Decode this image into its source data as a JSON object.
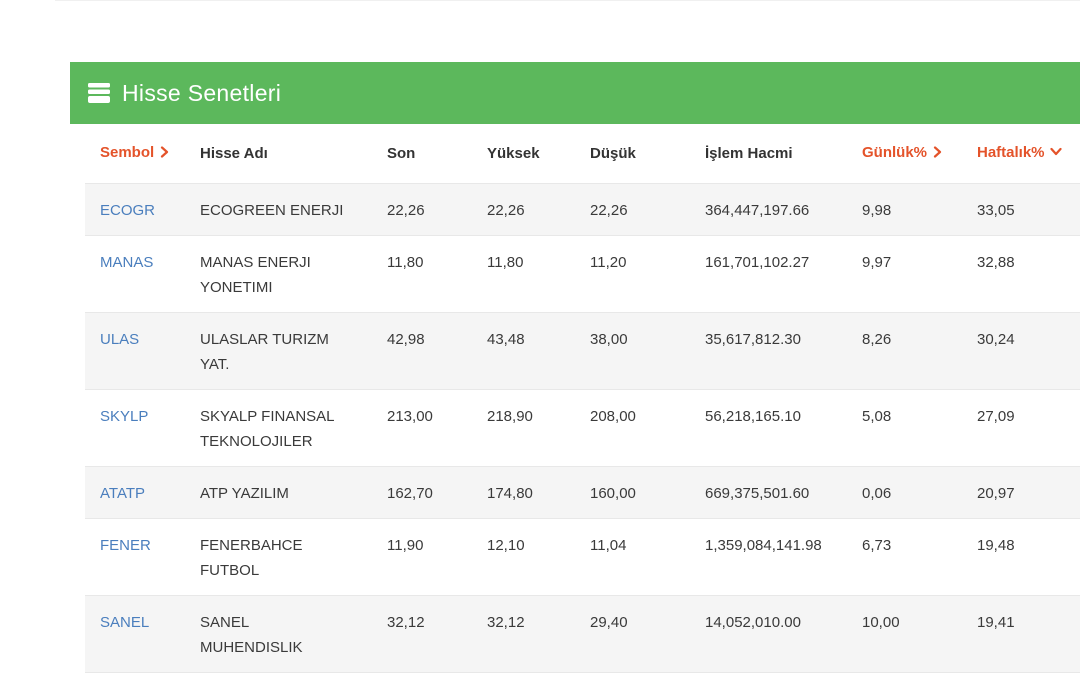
{
  "panel": {
    "title": "Hisse Senetleri",
    "icon": "book-icon",
    "background_color": "#5cb85c",
    "title_color": "#ffffff"
  },
  "colors": {
    "sort_accent": "#e4532a",
    "symbol_link": "#4a7ebd",
    "row_stripe": "#f5f5f5",
    "row_border": "#e8e8e8",
    "header_text": "#333333",
    "body_text": "#3a3a3a"
  },
  "table": {
    "columns": [
      {
        "key": "symbol",
        "label": "Sembol",
        "accent": true,
        "chevron": "right"
      },
      {
        "key": "name",
        "label": "Hisse Adı",
        "accent": false,
        "chevron": "none"
      },
      {
        "key": "last",
        "label": "Son",
        "accent": false,
        "chevron": "none"
      },
      {
        "key": "high",
        "label": "Yüksek",
        "accent": false,
        "chevron": "none"
      },
      {
        "key": "low",
        "label": "Düşük",
        "accent": false,
        "chevron": "none"
      },
      {
        "key": "volume",
        "label": "İşlem Hacmi",
        "accent": false,
        "chevron": "none"
      },
      {
        "key": "daily",
        "label": "Günlük%",
        "accent": true,
        "chevron": "right"
      },
      {
        "key": "weekly",
        "label": "Haftalık%",
        "accent": true,
        "chevron": "down"
      }
    ],
    "rows": [
      {
        "symbol": "ECOGR",
        "name": "ECOGREEN ENERJI",
        "last": "22,26",
        "high": "22,26",
        "low": "22,26",
        "volume": "364,447,197.66",
        "daily": "9,98",
        "weekly": "33,05"
      },
      {
        "symbol": "MANAS",
        "name": "MANAS ENERJI\nYONETIMI",
        "last": "11,80",
        "high": "11,80",
        "low": "11,20",
        "volume": "161,701,102.27",
        "daily": "9,97",
        "weekly": "32,88"
      },
      {
        "symbol": "ULAS",
        "name": "ULASLAR TURIZM\nYAT.",
        "last": "42,98",
        "high": "43,48",
        "low": "38,00",
        "volume": "35,617,812.30",
        "daily": "8,26",
        "weekly": "30,24"
      },
      {
        "symbol": "SKYLP",
        "name": "SKYALP FINANSAL\nTEKNOLOJILER",
        "last": "213,00",
        "high": "218,90",
        "low": "208,00",
        "volume": "56,218,165.10",
        "daily": "5,08",
        "weekly": "27,09"
      },
      {
        "symbol": "ATATP",
        "name": "ATP YAZILIM",
        "last": "162,70",
        "high": "174,80",
        "low": "160,00",
        "volume": "669,375,501.60",
        "daily": "0,06",
        "weekly": "20,97"
      },
      {
        "symbol": "FENER",
        "name": "FENERBAHCE\nFUTBOL",
        "last": "11,90",
        "high": "12,10",
        "low": "11,04",
        "volume": "1,359,084,141.98",
        "daily": "6,73",
        "weekly": "19,48"
      },
      {
        "symbol": "SANEL",
        "name": "SANEL\nMUHENDISLIK",
        "last": "32,12",
        "high": "32,12",
        "low": "29,40",
        "volume": "14,052,010.00",
        "daily": "10,00",
        "weekly": "19,41"
      }
    ]
  }
}
